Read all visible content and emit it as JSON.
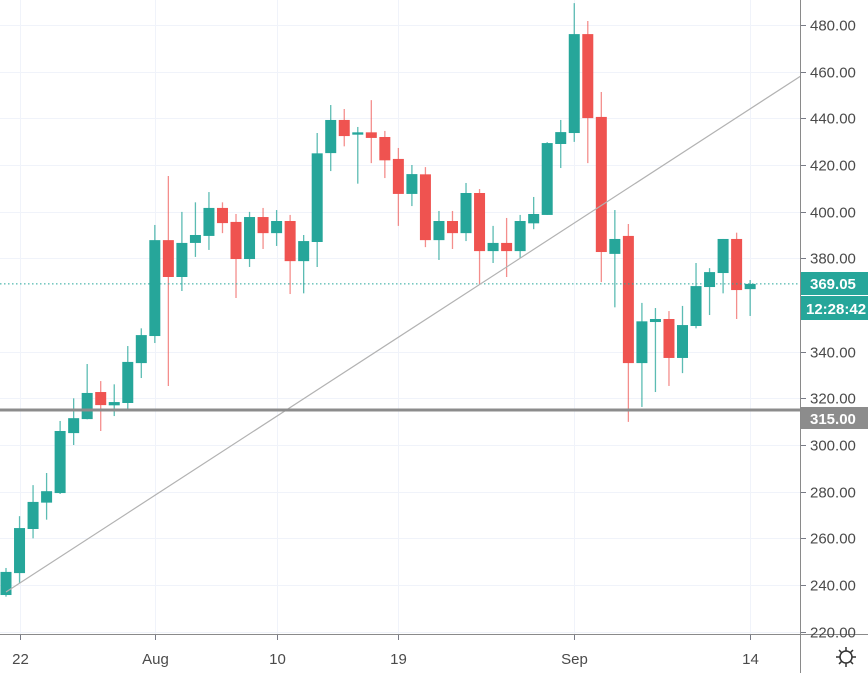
{
  "chart_data": {
    "type": "candlestick",
    "title": "",
    "colors": {
      "up": "#26a69a",
      "down": "#ef5350",
      "grid": "#f0f3fa",
      "axis": "#787b86",
      "level": "#8c8c8c",
      "trend": "#b2b2b2"
    },
    "ylim": [
      216,
      490
    ],
    "y_ticks": [
      "480.00",
      "460.00",
      "440.00",
      "420.00",
      "400.00",
      "380.00",
      "340.00",
      "320.00",
      "300.00",
      "280.00",
      "260.00",
      "240.00",
      "220.00"
    ],
    "y_tick_values": [
      480,
      460,
      440,
      420,
      400,
      380,
      340,
      320,
      300,
      280,
      260,
      240,
      220
    ],
    "x_ticks": [
      {
        "label": "22",
        "index": 1
      },
      {
        "label": "Aug",
        "index": 11
      },
      {
        "label": "10",
        "index": 20
      },
      {
        "label": "19",
        "index": 29
      },
      {
        "label": "Sep",
        "index": 42
      },
      {
        "label": "14",
        "index": 55
      }
    ],
    "dates": [
      "Jul 21",
      "Jul 22",
      "Jul 23",
      "Jul 24",
      "Jul 25",
      "Jul 26",
      "Jul 27",
      "Jul 28",
      "Jul 29",
      "Jul 30",
      "Jul 31",
      "Aug 1",
      "Aug 2",
      "Aug 3",
      "Aug 4",
      "Aug 5",
      "Aug 6",
      "Aug 7",
      "Aug 8",
      "Aug 9",
      "Aug 10",
      "Aug 11",
      "Aug 12",
      "Aug 13",
      "Aug 14",
      "Aug 15",
      "Aug 16",
      "Aug 17",
      "Aug 18",
      "Aug 19",
      "Aug 20",
      "Aug 21",
      "Aug 22",
      "Aug 23",
      "Aug 24",
      "Aug 25",
      "Aug 26",
      "Aug 27",
      "Aug 28",
      "Aug 29",
      "Aug 30",
      "Aug 31",
      "Sep 1",
      "Sep 2",
      "Sep 3",
      "Sep 4",
      "Sep 5",
      "Sep 6",
      "Sep 7",
      "Sep 8",
      "Sep 9",
      "Sep 10",
      "Sep 11",
      "Sep 12",
      "Sep 13",
      "Sep 14"
    ],
    "ohlc": [
      [
        235.7,
        247.3,
        235.0,
        245.6
      ],
      [
        245.1,
        269.5,
        240.8,
        264.4
      ],
      [
        264.0,
        282.8,
        260.0,
        275.6
      ],
      [
        275.3,
        288.0,
        268.0,
        280.2
      ],
      [
        279.4,
        310.3,
        279.0,
        306.0
      ],
      [
        305.1,
        320.0,
        300.0,
        311.5
      ],
      [
        311.1,
        334.7,
        311.0,
        322.3
      ],
      [
        322.7,
        327.4,
        306.0,
        317.1
      ],
      [
        317.0,
        326.0,
        312.4,
        318.4
      ],
      [
        318.0,
        342.4,
        315.0,
        335.6
      ],
      [
        335.1,
        350.0,
        328.7,
        347.1
      ],
      [
        346.7,
        394.3,
        343.7,
        387.8
      ],
      [
        387.8,
        415.3,
        325.3,
        372.0
      ],
      [
        372.0,
        399.9,
        366.0,
        386.6
      ],
      [
        386.6,
        404.0,
        380.6,
        390.0
      ],
      [
        389.6,
        408.4,
        383.6,
        401.6
      ],
      [
        401.6,
        404.0,
        390.8,
        395.1
      ],
      [
        395.6,
        399.0,
        363.0,
        379.7
      ],
      [
        379.7,
        399.9,
        376.3,
        397.7
      ],
      [
        397.7,
        401.6,
        384.0,
        390.8
      ],
      [
        390.8,
        400.7,
        385.3,
        396.0
      ],
      [
        396.0,
        398.6,
        364.7,
        378.8
      ],
      [
        378.8,
        390.0,
        365.0,
        387.4
      ],
      [
        387.0,
        433.7,
        376.3,
        425.0
      ],
      [
        425.1,
        445.7,
        417.4,
        439.3
      ],
      [
        439.3,
        444.0,
        428.0,
        432.4
      ],
      [
        433.0,
        436.3,
        412.0,
        434.0
      ],
      [
        434.0,
        447.8,
        420.8,
        431.6
      ],
      [
        432.0,
        434.6,
        414.4,
        422.0
      ],
      [
        422.6,
        427.3,
        393.9,
        407.6
      ],
      [
        407.6,
        420.0,
        402.4,
        416.1
      ],
      [
        416.0,
        419.1,
        384.8,
        387.8
      ],
      [
        387.8,
        400.3,
        379.3,
        396.0
      ],
      [
        396.0,
        400.3,
        384.0,
        390.8
      ],
      [
        390.8,
        412.3,
        387.4,
        408.0
      ],
      [
        408.0,
        409.7,
        369.0,
        383.1
      ],
      [
        383.1,
        393.9,
        378.0,
        386.6
      ],
      [
        386.6,
        397.3,
        372.0,
        383.1
      ],
      [
        383.1,
        398.6,
        380.0,
        396.0
      ],
      [
        395.0,
        406.3,
        392.5,
        399.0
      ],
      [
        398.6,
        429.8,
        398.6,
        429.4
      ],
      [
        429.0,
        439.3,
        418.7,
        434.1
      ],
      [
        433.7,
        489.4,
        429.9,
        476.1
      ],
      [
        476.1,
        481.7,
        420.8,
        440.1
      ],
      [
        440.6,
        451.3,
        369.8,
        382.7
      ],
      [
        381.9,
        400.7,
        359.0,
        388.3
      ],
      [
        389.6,
        394.7,
        309.9,
        335.1
      ],
      [
        335.1,
        360.9,
        316.3,
        353.0
      ],
      [
        352.7,
        358.7,
        322.7,
        354.0
      ],
      [
        354.0,
        357.4,
        325.3,
        337.3
      ],
      [
        337.3,
        359.6,
        330.8,
        351.4
      ],
      [
        351.0,
        378.0,
        350.0,
        368.1
      ],
      [
        367.7,
        375.8,
        355.7,
        374.1
      ],
      [
        373.7,
        388.3,
        365.0,
        388.3
      ],
      [
        388.3,
        391.0,
        354.0,
        366.4
      ],
      [
        366.8,
        370.7,
        355.3,
        369.05
      ]
    ],
    "horizontal_level": {
      "price": 315,
      "label": "315.00"
    },
    "trend_line": {
      "start": {
        "index": 0,
        "price": 237
      },
      "end": {
        "index": 58.7,
        "price": 458
      }
    },
    "last_price": {
      "price": 369.05,
      "label": "369.05",
      "countdown": "12:28:42"
    }
  },
  "toolbar": {
    "settings_icon": "gear-icon"
  }
}
